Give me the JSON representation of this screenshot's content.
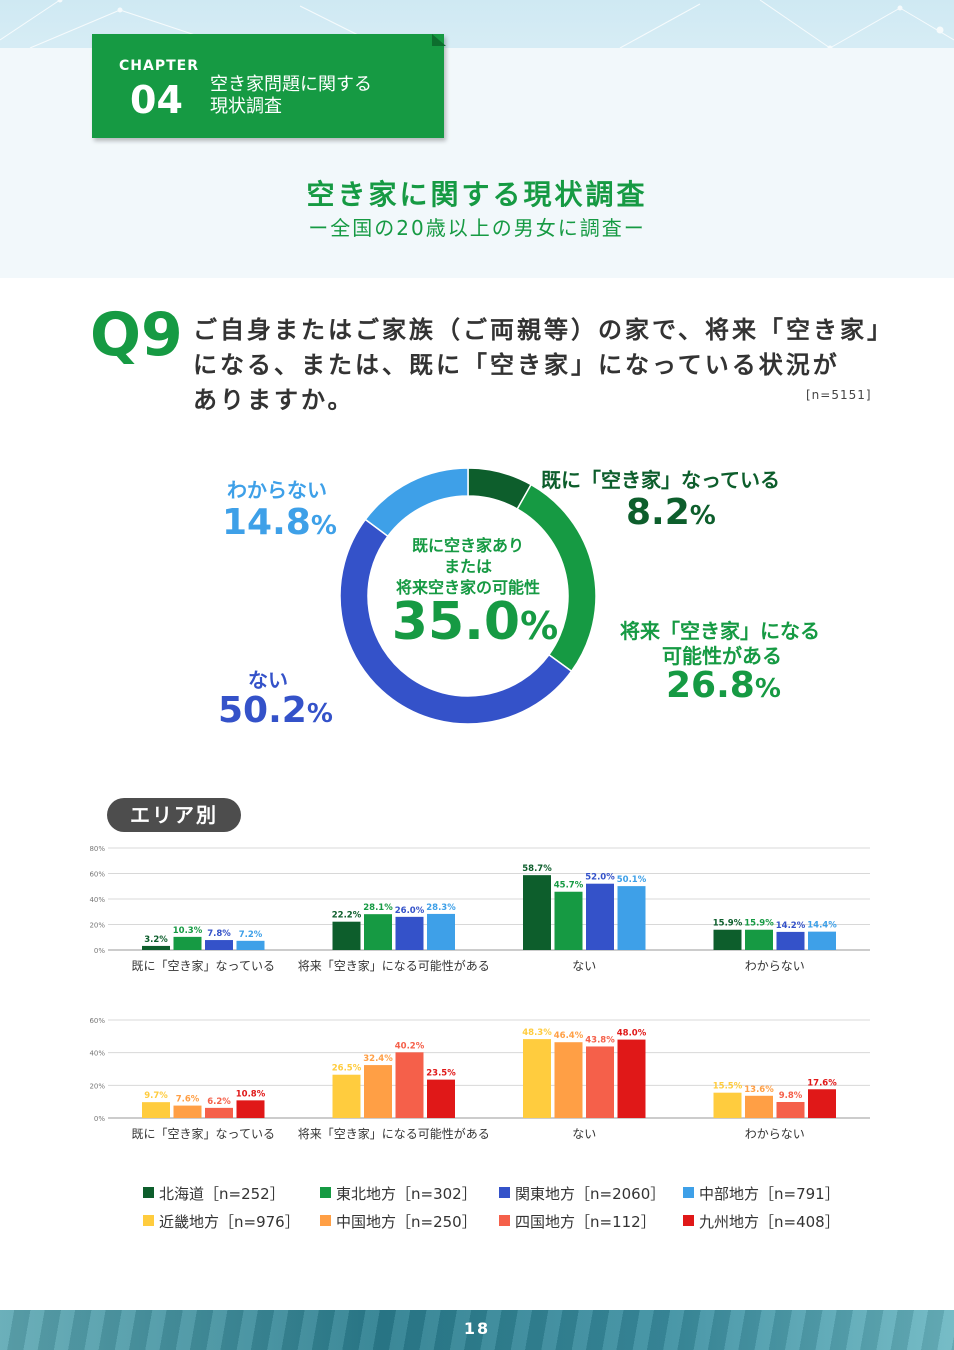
{
  "chapter": {
    "label": "CHAPTER",
    "number": "04",
    "title_line1": "空き家問題に関する",
    "title_line2": "現状調査"
  },
  "heading": {
    "title": "空き家に関する現状調査",
    "subtitle": "ー全国の20歳以上の男女に調査ー"
  },
  "question": {
    "label": "Q9",
    "line1": "ご自身またはご家族（ご両親等）の家で、将来「空き家」",
    "line2": "になる、または、既に「空き家」になっている状況が",
    "line3": "ありますか。",
    "n": "[n=5151]"
  },
  "donut": {
    "center_line1": "既に空き家あり",
    "center_line2": "または",
    "center_line3": "将来空き家の可能性",
    "center_value": "35.0",
    "slices": [
      {
        "name": "既に「空き家」なっている",
        "value": 8.2,
        "color": "#0d5e2c"
      },
      {
        "name": "将来「空き家」になる可能性がある",
        "value": 26.8,
        "color": "#169a43"
      },
      {
        "name": "ない",
        "value": 50.2,
        "color": "#3452c9"
      },
      {
        "name": "わからない",
        "value": 14.8,
        "color": "#3ea0e8"
      }
    ],
    "labels": {
      "already_name": "既に「空き家」なっている",
      "already_value": "8.2",
      "future_name1": "将来「空き家」になる",
      "future_name2": "可能性がある",
      "future_value": "26.8",
      "none_name": "ない",
      "none_value": "50.2",
      "unknown_name": "わからない",
      "unknown_value": "14.8",
      "unit": "%"
    }
  },
  "area_label": "エリア別",
  "chart_data": [
    {
      "type": "bar",
      "categories": [
        "既に「空き家」なっている",
        "将来「空き家」になる可能性がある",
        "ない",
        "わからない"
      ],
      "ylim": [
        0,
        80
      ],
      "yticks": [
        "0%",
        "20%",
        "40%",
        "60%",
        "80%"
      ],
      "series": [
        {
          "name": "北海道［n=252］",
          "color": "#0d5e2c",
          "values": [
            3.2,
            22.2,
            58.7,
            15.9
          ],
          "labels": [
            "3.2%",
            "22.2%",
            "58.7%",
            "15.9%"
          ]
        },
        {
          "name": "東北地方［n=302］",
          "color": "#169a43",
          "values": [
            10.3,
            28.1,
            45.7,
            15.9
          ],
          "labels": [
            "10.3%",
            "28.1%",
            "45.7%",
            "15.9%"
          ]
        },
        {
          "name": "関東地方［n=2060］",
          "color": "#3452c9",
          "values": [
            7.8,
            26.0,
            52.0,
            14.2
          ],
          "labels": [
            "7.8%",
            "26.0%",
            "52.0%",
            "14.2%"
          ]
        },
        {
          "name": "中部地方［n=791］",
          "color": "#3ea0e8",
          "values": [
            7.2,
            28.3,
            50.1,
            14.4
          ],
          "labels": [
            "7.2%",
            "28.3%",
            "50.1%",
            "14.4%"
          ]
        }
      ]
    },
    {
      "type": "bar",
      "categories": [
        "既に「空き家」なっている",
        "将来「空き家」になる可能性がある",
        "ない",
        "わからない"
      ],
      "ylim": [
        0,
        60
      ],
      "yticks": [
        "0%",
        "20%",
        "40%",
        "60%"
      ],
      "series": [
        {
          "name": "近畿地方［n=976］",
          "color": "#ffcc3e",
          "values": [
            9.7,
            26.5,
            48.3,
            15.5
          ],
          "labels": [
            "9.7%",
            "26.5%",
            "48.3%",
            "15.5%"
          ]
        },
        {
          "name": "中国地方［n=250］",
          "color": "#ff9f45",
          "values": [
            7.6,
            32.4,
            46.4,
            13.6
          ],
          "labels": [
            "7.6%",
            "32.4%",
            "46.4%",
            "13.6%"
          ]
        },
        {
          "name": "四国地方［n=112］",
          "color": "#f5604a",
          "values": [
            6.2,
            40.2,
            43.8,
            9.8
          ],
          "labels": [
            "6.2%",
            "40.2%",
            "43.8%",
            "9.8%"
          ]
        },
        {
          "name": "九州地方［n=408］",
          "color": "#e01818",
          "values": [
            10.8,
            23.5,
            48.0,
            17.6
          ],
          "labels": [
            "10.8%",
            "23.5%",
            "48.0%",
            "17.6%"
          ]
        }
      ]
    }
  ],
  "legend": [
    {
      "label": "北海道［n=252］",
      "color": "#0d5e2c"
    },
    {
      "label": "東北地方［n=302］",
      "color": "#169a43"
    },
    {
      "label": "関東地方［n=2060］",
      "color": "#3452c9"
    },
    {
      "label": "中部地方［n=791］",
      "color": "#3ea0e8"
    },
    {
      "label": "近畿地方［n=976］",
      "color": "#ffcc3e"
    },
    {
      "label": "中国地方［n=250］",
      "color": "#ff9f45"
    },
    {
      "label": "四国地方［n=112］",
      "color": "#f5604a"
    },
    {
      "label": "九州地方［n=408］",
      "color": "#e01818"
    }
  ],
  "page_number": "18"
}
